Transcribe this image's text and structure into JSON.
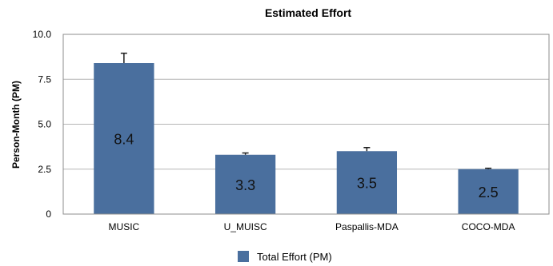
{
  "chart_data": {
    "type": "bar",
    "title": "Estimated Effort",
    "xlabel": "",
    "ylabel": "Person-Month (PM)",
    "categories": [
      "MUSIC",
      "U_MUISC",
      "Paspallis-MDA",
      "COCO-MDA"
    ],
    "series": [
      {
        "name": "Total Effort (PM)",
        "values": [
          8.4,
          3.3,
          3.5,
          2.5
        ],
        "error": [
          0.55,
          0.1,
          0.2,
          0.05
        ],
        "color": "#4a6f9e"
      }
    ],
    "data_labels": [
      "8.4",
      "3.3",
      "3.5",
      "2.5"
    ],
    "ylim": [
      0,
      10
    ],
    "yticks": [
      0,
      2.5,
      5,
      7.5,
      10
    ],
    "ytick_labels": [
      "0",
      "2.5",
      "5.0",
      "7.5",
      "10.0"
    ],
    "grid": true,
    "legend_position": "bottom-center"
  }
}
